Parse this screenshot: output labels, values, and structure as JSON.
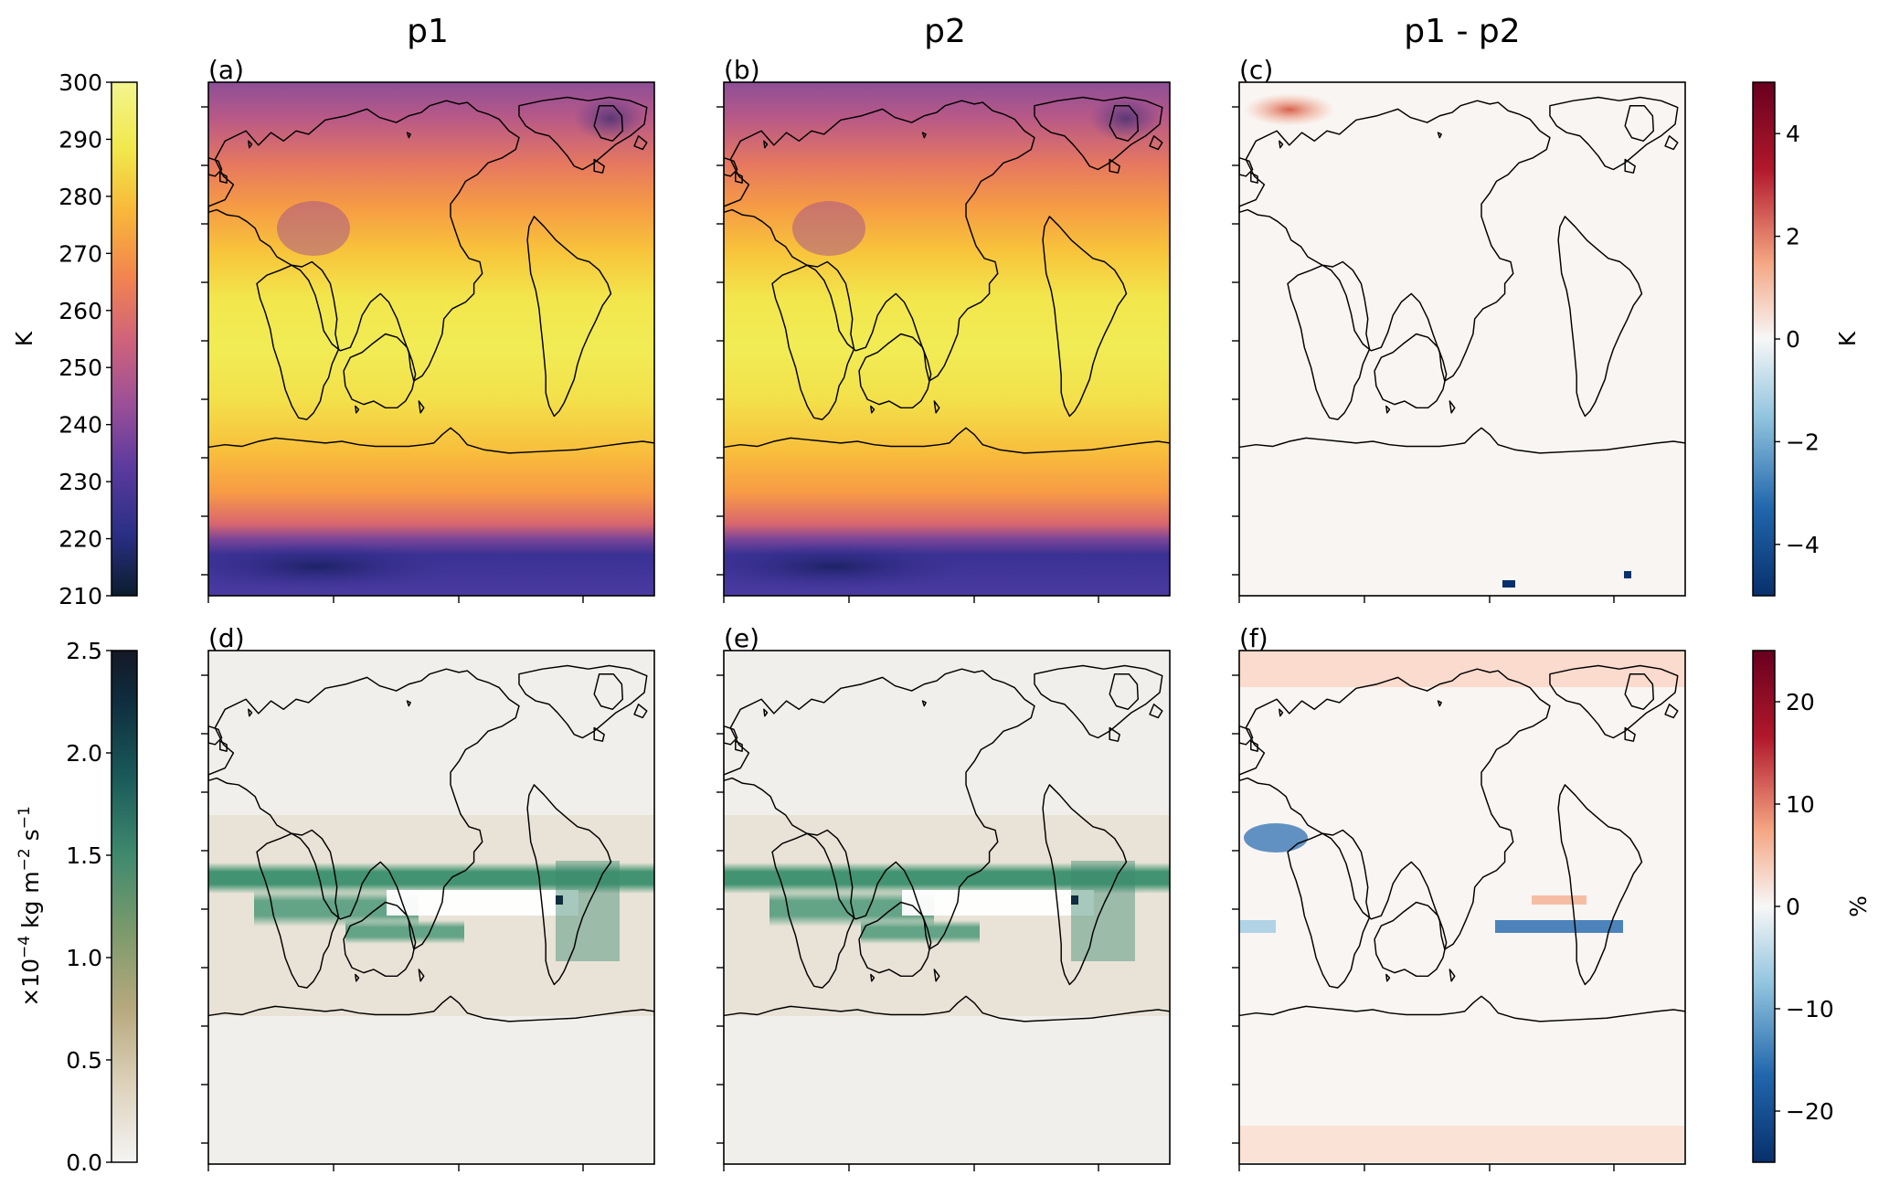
{
  "columns": [
    "p1",
    "p2",
    "p1 - p2"
  ],
  "panels": [
    {
      "label": "(a)",
      "field": "temperature",
      "cmap": "thermal"
    },
    {
      "label": "(b)",
      "field": "temperature",
      "cmap": "thermal"
    },
    {
      "label": "(c)",
      "field": "temperature_diff",
      "cmap": "diverging"
    },
    {
      "label": "(d)",
      "field": "precipitation",
      "cmap": "rain"
    },
    {
      "label": "(e)",
      "field": "precipitation",
      "cmap": "rain"
    },
    {
      "label": "(f)",
      "field": "precipitation_diff",
      "cmap": "diverging"
    }
  ],
  "colorbars": {
    "temperature": {
      "label": "K",
      "ticks": [
        "300",
        "290",
        "280",
        "270",
        "260",
        "250",
        "240",
        "230",
        "220",
        "210"
      ],
      "range": [
        210,
        300
      ],
      "colors": [
        "#0b1c2c",
        "#2a2f86",
        "#5b3a9e",
        "#9a4f98",
        "#d0637a",
        "#f2844f",
        "#f8b83a",
        "#f1e84c",
        "#f3f58e"
      ]
    },
    "temperature_diff": {
      "label": "K",
      "ticks": [
        "4",
        "2",
        "0",
        "−2",
        "−4"
      ],
      "range": [
        -5,
        5
      ],
      "colors": [
        "#08306b",
        "#2166ac",
        "#92c5de",
        "#f7f7f7",
        "#f4a582",
        "#b2182b",
        "#67001f"
      ]
    },
    "precipitation": {
      "label_main": "×10",
      "label_exp": "−4",
      "label_unit": " kg m",
      "label_exp2": "−2",
      "label_unit2": " s",
      "label_exp3": "−1",
      "ticks": [
        "2.5",
        "2.0",
        "1.5",
        "1.0",
        "0.5",
        "0.0"
      ],
      "range": [
        0.0,
        2.5
      ],
      "colors": [
        "#f4f4f4",
        "#ddd2bb",
        "#b7a97e",
        "#7c9a6c",
        "#3f8a6e",
        "#1a5b5a",
        "#0f2d3e",
        "#141826"
      ]
    },
    "precipitation_diff": {
      "label": "%",
      "ticks": [
        "20",
        "10",
        "0",
        "−10",
        "−20"
      ],
      "range": [
        -25,
        25
      ],
      "colors": [
        "#08306b",
        "#2166ac",
        "#92c5de",
        "#f7f7f7",
        "#f4a582",
        "#b2182b",
        "#67001f"
      ]
    }
  }
}
